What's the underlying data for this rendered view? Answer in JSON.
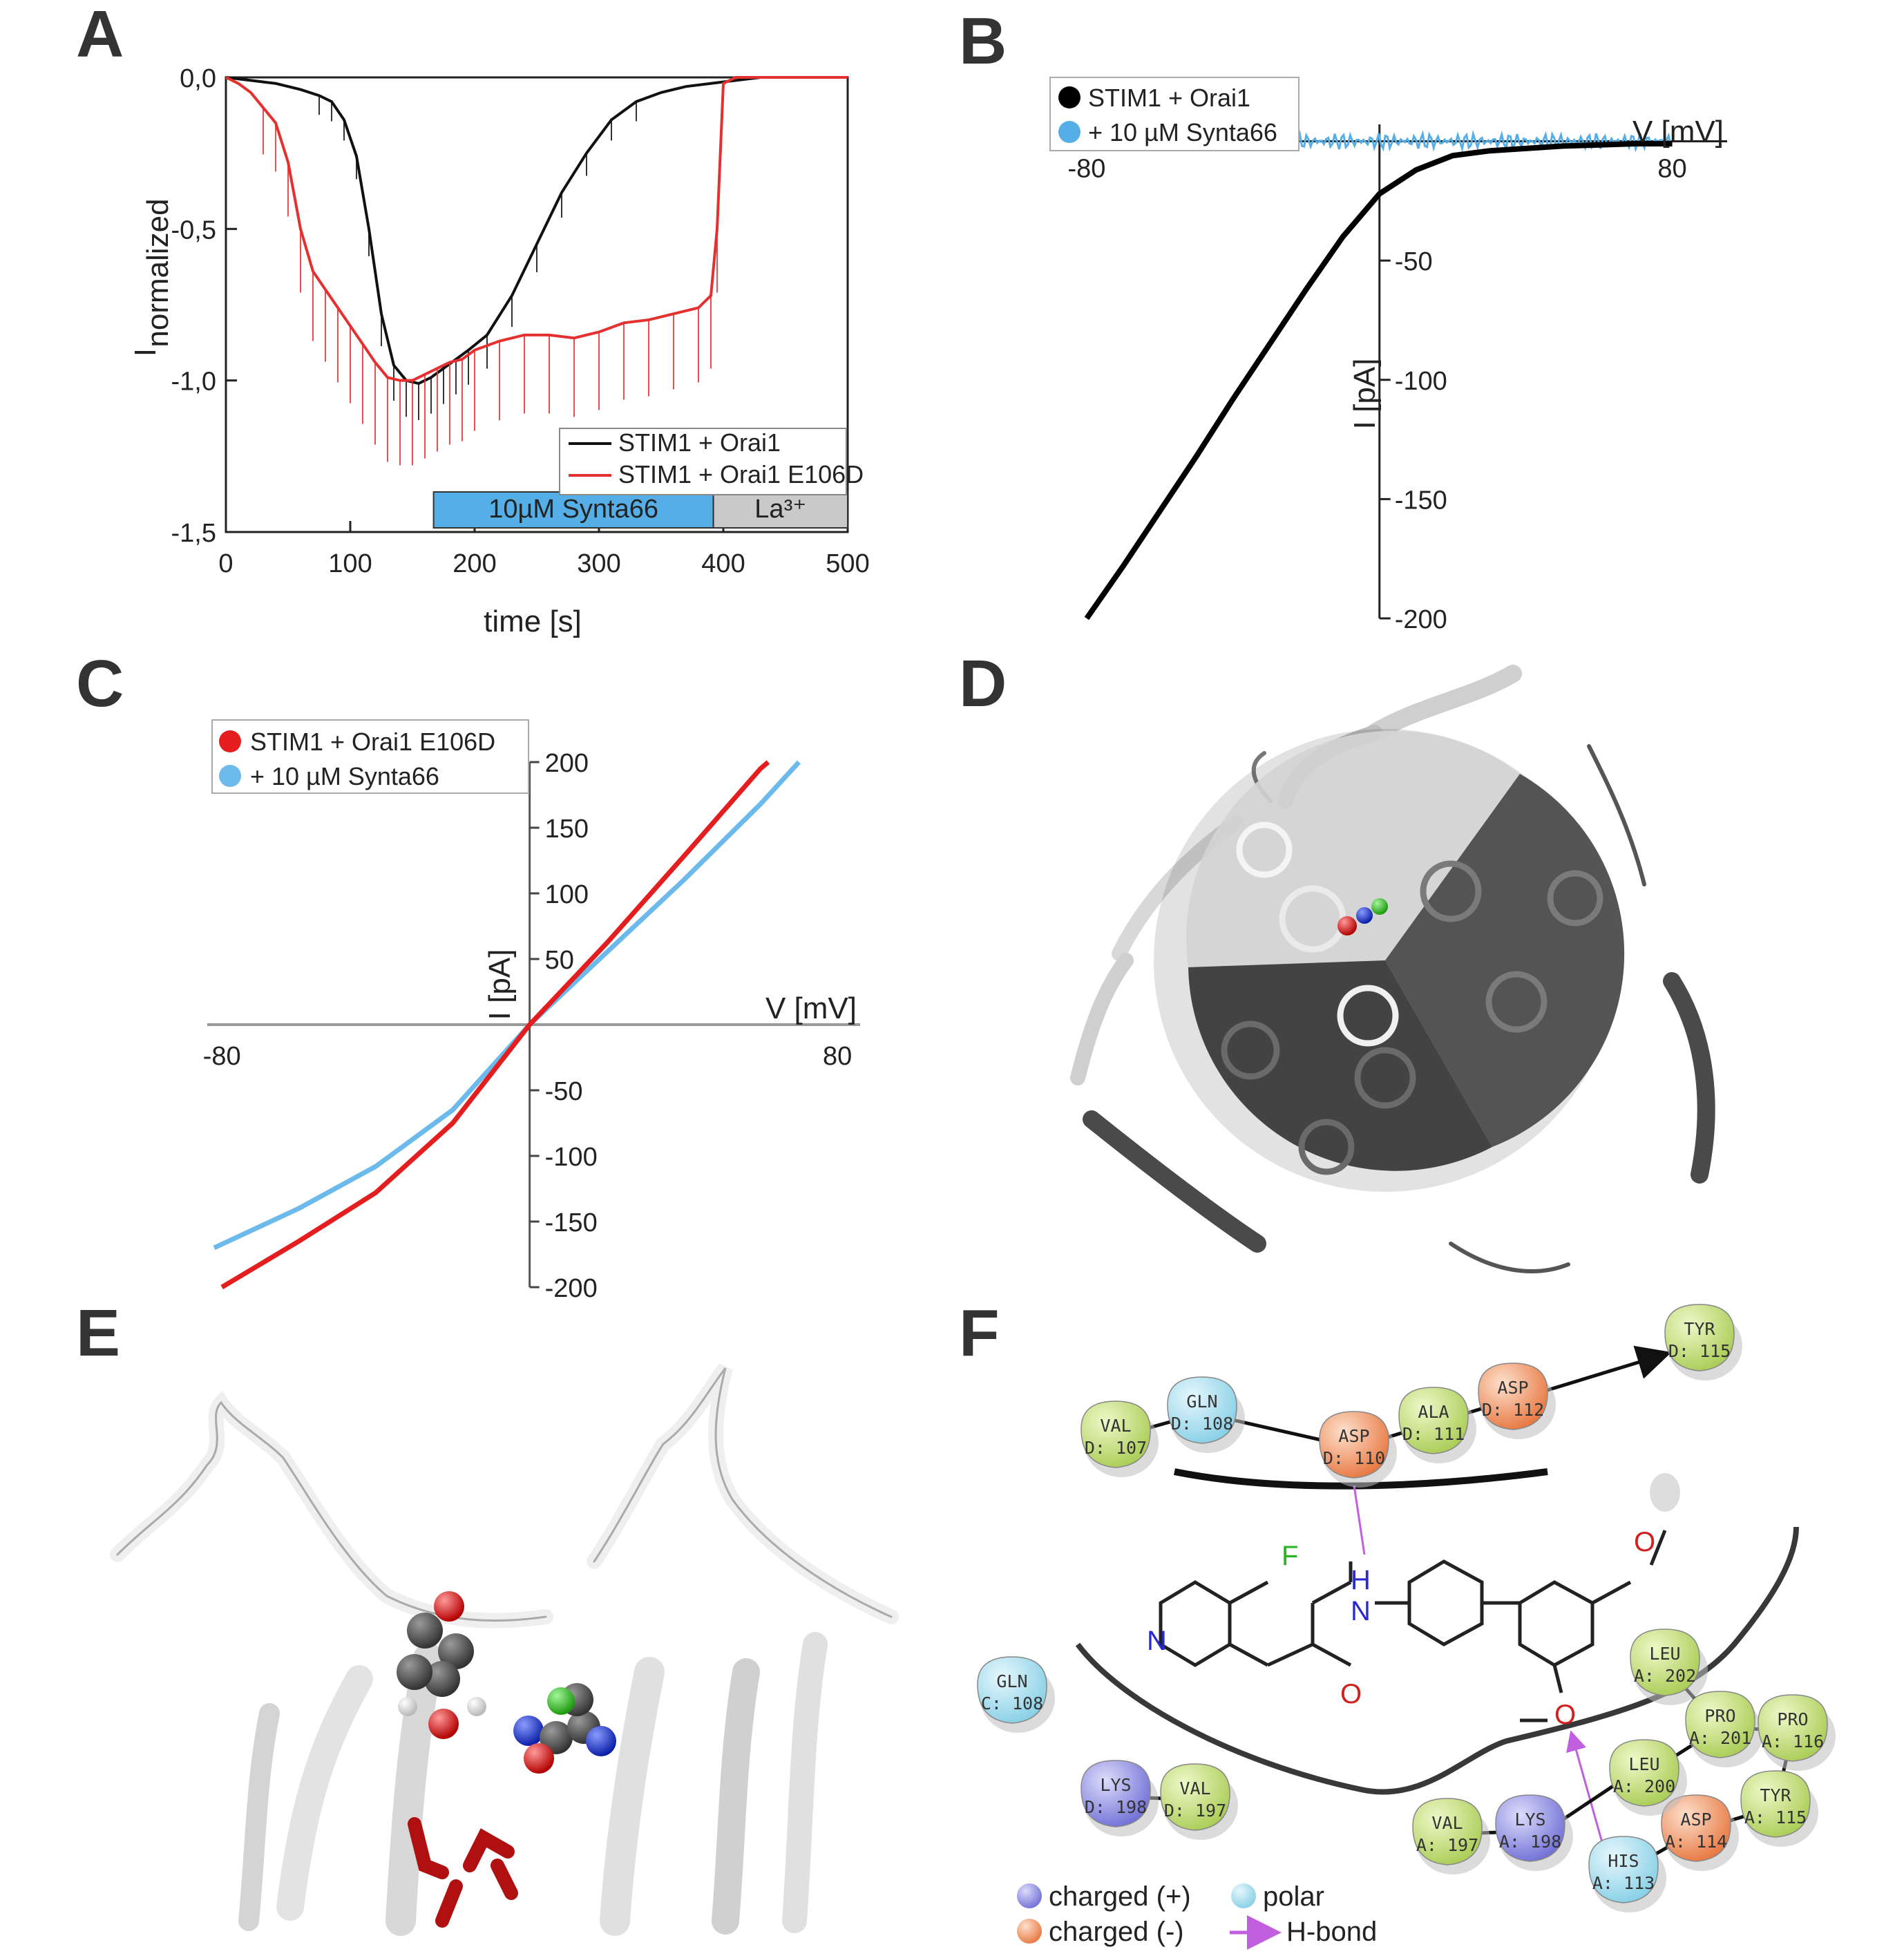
{
  "figure": {
    "panel_labels": [
      "A",
      "B",
      "C",
      "D",
      "E",
      "F"
    ]
  },
  "chart_data": [
    {
      "panel": "A",
      "type": "line",
      "xlabel": "time [s]",
      "ylabel": "I",
      "ylabel_sub": "normalized",
      "xlim": [
        0,
        500
      ],
      "ylim": [
        -1.5,
        0
      ],
      "x_ticks": [
        "0",
        "100",
        "200",
        "300",
        "400",
        "500"
      ],
      "y_ticks": [
        "0,0",
        "-0,5",
        "-1,0",
        "-1,5"
      ],
      "bars": [
        {
          "label": "10µM Synta66",
          "start": 167,
          "end": 392,
          "color": "#56aee6"
        },
        {
          "label": "La³⁺",
          "start": 392,
          "end": 500,
          "color": "#c9c9c9"
        }
      ],
      "series": [
        {
          "name": "STIM1 + Orai1",
          "color": "#111111",
          "x": [
            0,
            20,
            40,
            60,
            75,
            85,
            95,
            105,
            115,
            125,
            135,
            145,
            155,
            165,
            175,
            185,
            195,
            210,
            230,
            250,
            270,
            290,
            310,
            330,
            350,
            370,
            390,
            410,
            430,
            450,
            470,
            490,
            500
          ],
          "y": [
            0,
            -0.01,
            -0.02,
            -0.04,
            -0.06,
            -0.08,
            -0.14,
            -0.26,
            -0.5,
            -0.78,
            -0.95,
            -1.0,
            -1.01,
            -0.99,
            -0.96,
            -0.93,
            -0.9,
            -0.85,
            -0.72,
            -0.55,
            -0.38,
            -0.25,
            -0.14,
            -0.08,
            -0.05,
            -0.03,
            -0.02,
            -0.01,
            0,
            0,
            0,
            0,
            0
          ]
        },
        {
          "name": "STIM1 + Orai1 E106D",
          "color": "#e53030",
          "x": [
            0,
            10,
            20,
            30,
            40,
            50,
            60,
            70,
            80,
            90,
            100,
            110,
            120,
            130,
            140,
            150,
            160,
            170,
            180,
            190,
            200,
            220,
            240,
            260,
            280,
            300,
            320,
            340,
            360,
            380,
            390,
            395,
            400,
            410,
            430,
            450,
            470,
            490,
            500
          ],
          "y": [
            0,
            -0.02,
            -0.05,
            -0.1,
            -0.15,
            -0.28,
            -0.5,
            -0.64,
            -0.7,
            -0.76,
            -0.82,
            -0.88,
            -0.94,
            -0.99,
            -1.0,
            -1.0,
            -0.98,
            -0.96,
            -0.94,
            -0.93,
            -0.9,
            -0.87,
            -0.85,
            -0.85,
            -0.86,
            -0.84,
            -0.81,
            -0.8,
            -0.78,
            -0.76,
            -0.72,
            -0.5,
            -0.02,
            0,
            0,
            0,
            0,
            0,
            0
          ]
        }
      ]
    },
    {
      "panel": "B",
      "type": "line",
      "xlabel": "V [mV]",
      "ylabel": "I [pA]",
      "xlim": [
        -90,
        95
      ],
      "ylim": [
        -200,
        10
      ],
      "x_ticks": [
        "-80",
        "80"
      ],
      "y_ticks": [
        "-50",
        "-100",
        "-150",
        "-200"
      ],
      "series": [
        {
          "name": "STIM1 + Orai1",
          "color": "#000000",
          "x": [
            -80,
            -70,
            -60,
            -50,
            -40,
            -30,
            -20,
            -10,
            0,
            10,
            20,
            30,
            40,
            50,
            60,
            70,
            80
          ],
          "y": [
            -200,
            -178,
            -155,
            -132,
            -108,
            -85,
            -62,
            -40,
            -22,
            -12,
            -6,
            -4,
            -3,
            -2,
            -1.5,
            -1,
            -1
          ]
        },
        {
          "name": "+ 10 µM Synta66",
          "color": "#56aee6",
          "x": [
            -80,
            -40,
            0,
            40,
            80
          ],
          "y": [
            0,
            0,
            0,
            0,
            0
          ]
        }
      ]
    },
    {
      "panel": "C",
      "type": "line",
      "xlabel": "V [mV]",
      "ylabel": "I [pA]",
      "xlim": [
        -82,
        85
      ],
      "ylim": [
        -200,
        200
      ],
      "x_ticks": [
        "-80",
        "80"
      ],
      "y_ticks": [
        "200",
        "150",
        "100",
        "50",
        "-50",
        "-100",
        "-150",
        "-200"
      ],
      "series": [
        {
          "name": "STIM1 + Orai1 E106D",
          "color": "#e41e1e",
          "x": [
            -80,
            -60,
            -40,
            -20,
            0,
            20,
            40,
            60,
            62
          ],
          "y": [
            -200,
            -165,
            -128,
            -75,
            0,
            62,
            128,
            195,
            200
          ]
        },
        {
          "name": "+ 10 µM Synta66",
          "color": "#6cb9ec",
          "x": [
            -82,
            -60,
            -40,
            -20,
            0,
            20,
            40,
            60,
            70
          ],
          "y": [
            -170,
            -140,
            -108,
            -65,
            0,
            55,
            110,
            168,
            200
          ]
        }
      ]
    }
  ],
  "panel_f": {
    "residues": [
      {
        "name": "VAL",
        "id": "D: 107",
        "kind": "hydrophobic"
      },
      {
        "name": "GLN",
        "id": "D: 108",
        "kind": "polar"
      },
      {
        "name": "ASP",
        "id": "D: 110",
        "kind": "negative"
      },
      {
        "name": "ALA",
        "id": "D: 111",
        "kind": "hydrophobic"
      },
      {
        "name": "ASP",
        "id": "D: 112",
        "kind": "negative"
      },
      {
        "name": "TYR",
        "id": "D: 115",
        "kind": "hydrophobic"
      },
      {
        "name": "GLN",
        "id": "C: 108",
        "kind": "polar"
      },
      {
        "name": "LYS",
        "id": "D: 198",
        "kind": "positive"
      },
      {
        "name": "VAL",
        "id": "D: 197",
        "kind": "hydrophobic"
      },
      {
        "name": "VAL",
        "id": "A: 197",
        "kind": "hydrophobic"
      },
      {
        "name": "LYS",
        "id": "A: 198",
        "kind": "positive"
      },
      {
        "name": "HIS",
        "id": "A: 113",
        "kind": "polar"
      },
      {
        "name": "ASP",
        "id": "A: 114",
        "kind": "negative"
      },
      {
        "name": "LEU",
        "id": "A: 200",
        "kind": "hydrophobic"
      },
      {
        "name": "PRO",
        "id": "A: 201",
        "kind": "hydrophobic"
      },
      {
        "name": "LEU",
        "id": "A: 202",
        "kind": "hydrophobic"
      },
      {
        "name": "PRO",
        "id": "A: 116",
        "kind": "hydrophobic"
      },
      {
        "name": "TYR",
        "id": "A: 115",
        "kind": "hydrophobic"
      }
    ],
    "atoms": {
      "F": "F",
      "N_ring": "N",
      "H": "H",
      "N_amide": "N",
      "O_carbonyl": "O",
      "O_top": "O",
      "O_bottom": "O"
    },
    "legend": {
      "positive": "charged (+)",
      "polar": "polar",
      "negative": "charged (-)",
      "hbond": "H-bond"
    },
    "colors": {
      "hydrophobic": "#c2e07a",
      "polar": "#a9e2f2",
      "negative": "#f39a6a",
      "positive": "#8e8ee8",
      "hbond": "#c25ee0"
    }
  }
}
